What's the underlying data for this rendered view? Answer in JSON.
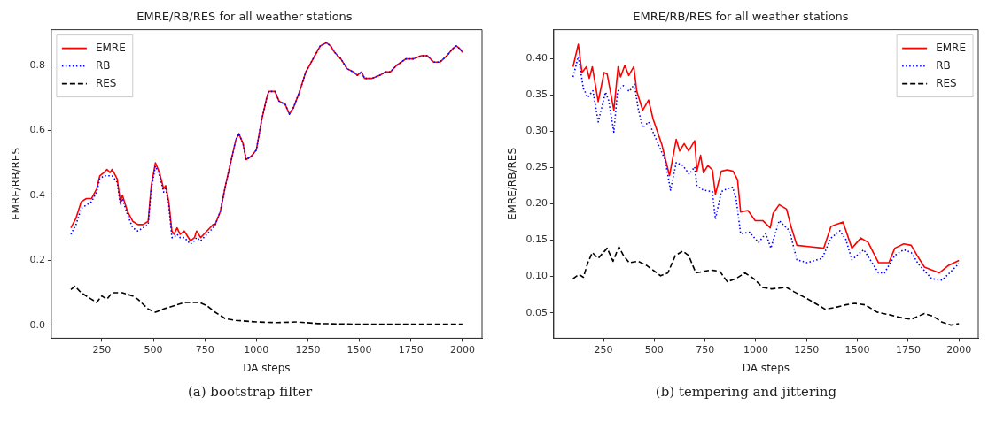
{
  "chart_data": [
    {
      "type": "line",
      "title": "EMRE/RB/RES for all weather stations",
      "xlabel": "DA steps",
      "ylabel": "EMRE/RB/RES",
      "xlim": [
        5,
        2095
      ],
      "xticks": [
        250,
        500,
        750,
        1000,
        1250,
        1500,
        1750,
        2000
      ],
      "ylim": [
        -0.04,
        0.91
      ],
      "yticks": [
        {
          "value": 0,
          "label": "0.0"
        },
        {
          "value": 0.2,
          "label": "0.2"
        },
        {
          "value": 0.4,
          "label": "0.4"
        },
        {
          "value": 0.6,
          "label": "0.6"
        },
        {
          "value": 0.8,
          "label": "0.8"
        }
      ],
      "grid": false,
      "legend": "top left",
      "marker": "none",
      "annotations": [
        "(a) bootstrap filter"
      ],
      "series": [
        {
          "name": "EMRE",
          "color": "#ff0000",
          "line_style": "solid",
          "x": [
            100,
            125,
            150,
            175,
            200,
            225,
            240,
            260,
            275,
            290,
            300,
            325,
            340,
            350,
            375,
            400,
            425,
            450,
            475,
            490,
            510,
            530,
            550,
            560,
            575,
            590,
            600,
            615,
            630,
            650,
            680,
            700,
            710,
            730,
            760,
            790,
            800,
            825,
            850,
            875,
            900,
            915,
            935,
            950,
            975,
            1000,
            1025,
            1050,
            1060,
            1090,
            1110,
            1140,
            1160,
            1180,
            1210,
            1240,
            1275,
            1310,
            1340,
            1360,
            1380,
            1410,
            1440,
            1470,
            1490,
            1510,
            1525,
            1560,
            1600,
            1625,
            1650,
            1680,
            1725,
            1760,
            1800,
            1830,
            1860,
            1890,
            1925,
            1950,
            1970,
            1990,
            2000
          ],
          "values": [
            0.3,
            0.33,
            0.38,
            0.39,
            0.39,
            0.42,
            0.46,
            0.47,
            0.48,
            0.47,
            0.48,
            0.45,
            0.38,
            0.4,
            0.35,
            0.32,
            0.31,
            0.31,
            0.32,
            0.43,
            0.5,
            0.47,
            0.42,
            0.43,
            0.38,
            0.29,
            0.28,
            0.3,
            0.28,
            0.29,
            0.26,
            0.27,
            0.29,
            0.27,
            0.29,
            0.31,
            0.31,
            0.35,
            0.43,
            0.5,
            0.57,
            0.59,
            0.56,
            0.51,
            0.52,
            0.54,
            0.63,
            0.7,
            0.72,
            0.72,
            0.69,
            0.68,
            0.65,
            0.67,
            0.72,
            0.78,
            0.82,
            0.86,
            0.87,
            0.86,
            0.84,
            0.82,
            0.79,
            0.78,
            0.77,
            0.78,
            0.76,
            0.76,
            0.77,
            0.78,
            0.78,
            0.8,
            0.82,
            0.82,
            0.83,
            0.83,
            0.81,
            0.81,
            0.83,
            0.85,
            0.86,
            0.85,
            0.84
          ]
        },
        {
          "name": "RB",
          "color": "#0000ff",
          "line_style": "dotted",
          "x": [
            100,
            125,
            150,
            175,
            200,
            225,
            240,
            260,
            275,
            290,
            300,
            325,
            340,
            350,
            375,
            400,
            425,
            450,
            475,
            490,
            510,
            530,
            550,
            560,
            575,
            590,
            600,
            615,
            630,
            650,
            680,
            700,
            710,
            730,
            760,
            790,
            800,
            825,
            850,
            875,
            900,
            915,
            935,
            950,
            975,
            1000,
            1025,
            1050,
            1060,
            1090,
            1110,
            1140,
            1160,
            1180,
            1210,
            1240,
            1275,
            1310,
            1340,
            1360,
            1380,
            1410,
            1440,
            1470,
            1490,
            1510,
            1525,
            1560,
            1600,
            1625,
            1650,
            1680,
            1725,
            1760,
            1800,
            1830,
            1860,
            1890,
            1925,
            1950,
            1970,
            1990,
            2000
          ],
          "values": [
            0.28,
            0.31,
            0.36,
            0.37,
            0.38,
            0.41,
            0.45,
            0.46,
            0.46,
            0.46,
            0.46,
            0.44,
            0.37,
            0.39,
            0.34,
            0.3,
            0.29,
            0.3,
            0.31,
            0.42,
            0.49,
            0.46,
            0.41,
            0.42,
            0.37,
            0.27,
            0.27,
            0.28,
            0.27,
            0.27,
            0.25,
            0.26,
            0.27,
            0.26,
            0.28,
            0.3,
            0.31,
            0.35,
            0.43,
            0.5,
            0.57,
            0.59,
            0.56,
            0.51,
            0.52,
            0.54,
            0.63,
            0.7,
            0.72,
            0.72,
            0.69,
            0.68,
            0.65,
            0.67,
            0.72,
            0.78,
            0.82,
            0.86,
            0.87,
            0.86,
            0.84,
            0.82,
            0.79,
            0.78,
            0.77,
            0.78,
            0.76,
            0.76,
            0.77,
            0.78,
            0.78,
            0.8,
            0.82,
            0.82,
            0.83,
            0.83,
            0.81,
            0.81,
            0.83,
            0.85,
            0.86,
            0.85,
            0.84
          ]
        },
        {
          "name": "RES",
          "color": "#000000",
          "line_style": "dashed",
          "x": [
            100,
            120,
            150,
            200,
            225,
            250,
            275,
            300,
            350,
            400,
            425,
            475,
            510,
            550,
            600,
            650,
            700,
            725,
            760,
            800,
            850,
            900,
            1000,
            1100,
            1200,
            1300,
            1500,
            2000
          ],
          "values": [
            0.11,
            0.12,
            0.1,
            0.08,
            0.07,
            0.09,
            0.08,
            0.1,
            0.1,
            0.09,
            0.08,
            0.05,
            0.04,
            0.05,
            0.06,
            0.07,
            0.07,
            0.07,
            0.06,
            0.04,
            0.02,
            0.015,
            0.01,
            0.008,
            0.01,
            0.005,
            0.003,
            0.003
          ]
        }
      ]
    },
    {
      "type": "line",
      "title": "EMRE/RB/RES for all weather stations",
      "xlabel": "DA steps",
      "ylabel": "EMRE/RB/RES",
      "xlim": [
        5,
        2095
      ],
      "xticks": [
        250,
        500,
        750,
        1000,
        1250,
        1500,
        1750,
        2000
      ],
      "ylim": [
        0.015,
        0.44
      ],
      "yticks": [
        {
          "value": 0.05,
          "label": "0.05"
        },
        {
          "value": 0.1,
          "label": "0.10"
        },
        {
          "value": 0.15,
          "label": "0.15"
        },
        {
          "value": 0.2,
          "label": "0.20"
        },
        {
          "value": 0.25,
          "label": "0.25"
        },
        {
          "value": 0.3,
          "label": "0.30"
        },
        {
          "value": 0.35,
          "label": "0.35"
        },
        {
          "value": 0.4,
          "label": "0.40"
        }
      ],
      "grid": false,
      "legend": "top right",
      "marker": "none",
      "annotations": [
        "(b) tempering and jittering"
      ],
      "series": [
        {
          "name": "EMRE",
          "color": "#ff0000",
          "line_style": "solid",
          "x": [
            100,
            126,
            144,
            166,
            180,
            195,
            224,
            253,
            268,
            301,
            322,
            334,
            355,
            374,
            399,
            414,
            443,
            472,
            494,
            538,
            575,
            608,
            625,
            647,
            669,
            699,
            710,
            728,
            742,
            764,
            786,
            801,
            830,
            859,
            888,
            910,
            925,
            961,
            997,
            1034,
            1071,
            1085,
            1115,
            1151,
            1173,
            1202,
            1268,
            1334,
            1370,
            1429,
            1473,
            1517,
            1553,
            1604,
            1655,
            1684,
            1728,
            1765,
            1794,
            1830,
            1866,
            1903,
            1947,
            2000
          ],
          "values": [
            0.389,
            0.42,
            0.381,
            0.389,
            0.373,
            0.389,
            0.341,
            0.381,
            0.379,
            0.329,
            0.389,
            0.375,
            0.391,
            0.377,
            0.389,
            0.355,
            0.329,
            0.343,
            0.317,
            0.281,
            0.239,
            0.289,
            0.273,
            0.283,
            0.273,
            0.287,
            0.245,
            0.267,
            0.243,
            0.253,
            0.247,
            0.213,
            0.245,
            0.247,
            0.245,
            0.233,
            0.189,
            0.191,
            0.177,
            0.177,
            0.167,
            0.187,
            0.199,
            0.193,
            0.169,
            0.143,
            0.141,
            0.139,
            0.169,
            0.175,
            0.139,
            0.153,
            0.147,
            0.119,
            0.119,
            0.139,
            0.145,
            0.143,
            0.129,
            0.113,
            0.109,
            0.105,
            0.115,
            0.122
          ]
        },
        {
          "name": "RB",
          "color": "#0000ff",
          "line_style": "dotted",
          "x": [
            100,
            126,
            151,
            173,
            198,
            224,
            260,
            275,
            301,
            319,
            348,
            377,
            402,
            421,
            443,
            472,
            509,
            553,
            580,
            608,
            640,
            672,
            699,
            710,
            742,
            786,
            801,
            830,
            859,
            885,
            902,
            925,
            969,
            1013,
            1049,
            1074,
            1115,
            1166,
            1202,
            1253,
            1326,
            1370,
            1414,
            1443,
            1473,
            1531,
            1604,
            1633,
            1684,
            1728,
            1765,
            1801,
            1866,
            1917,
            1954,
            2000
          ],
          "values": [
            0.375,
            0.403,
            0.359,
            0.347,
            0.356,
            0.313,
            0.354,
            0.343,
            0.299,
            0.355,
            0.363,
            0.355,
            0.365,
            0.331,
            0.305,
            0.313,
            0.289,
            0.261,
            0.219,
            0.257,
            0.253,
            0.241,
            0.251,
            0.225,
            0.219,
            0.217,
            0.179,
            0.217,
            0.221,
            0.223,
            0.209,
            0.159,
            0.161,
            0.147,
            0.159,
            0.139,
            0.177,
            0.163,
            0.123,
            0.119,
            0.125,
            0.153,
            0.163,
            0.151,
            0.123,
            0.137,
            0.105,
            0.105,
            0.129,
            0.137,
            0.133,
            0.117,
            0.097,
            0.095,
            0.105,
            0.118
          ]
        },
        {
          "name": "RES",
          "color": "#000000",
          "line_style": "dashed",
          "x": [
            100,
            129,
            151,
            173,
            195,
            224,
            268,
            297,
            326,
            348,
            377,
            421,
            464,
            531,
            567,
            604,
            640,
            669,
            705,
            742,
            779,
            823,
            859,
            902,
            946,
            990,
            1034,
            1078,
            1151,
            1188,
            1268,
            1341,
            1385,
            1443,
            1487,
            1538,
            1596,
            1662,
            1720,
            1765,
            1830,
            1874,
            1917,
            1961,
            2000
          ],
          "values": [
            0.097,
            0.103,
            0.099,
            0.119,
            0.133,
            0.125,
            0.139,
            0.121,
            0.141,
            0.129,
            0.119,
            0.121,
            0.115,
            0.101,
            0.105,
            0.129,
            0.135,
            0.129,
            0.105,
            0.107,
            0.109,
            0.107,
            0.093,
            0.097,
            0.105,
            0.097,
            0.085,
            0.083,
            0.085,
            0.079,
            0.067,
            0.055,
            0.057,
            0.061,
            0.063,
            0.061,
            0.051,
            0.047,
            0.043,
            0.041,
            0.049,
            0.045,
            0.037,
            0.033,
            0.035
          ]
        }
      ]
    }
  ]
}
